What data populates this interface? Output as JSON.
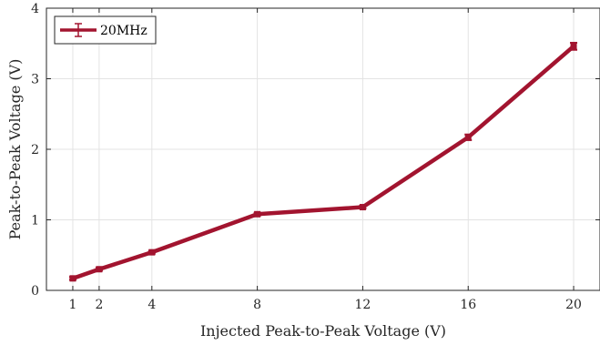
{
  "chart_data": {
    "type": "line",
    "title": "",
    "xlabel": "Injected Peak-to-Peak Voltage (V)",
    "ylabel": "Peak-to-Peak Voltage (V)",
    "xlim": [
      0,
      21
    ],
    "ylim": [
      0,
      4
    ],
    "xticks": [
      1,
      2,
      4,
      8,
      12,
      16,
      20
    ],
    "yticks": [
      0,
      1,
      2,
      3,
      4
    ],
    "grid": true,
    "legend_position": "top-left",
    "series": [
      {
        "name": "20MHz",
        "color": "#A2142F",
        "x": [
          1,
          2,
          4,
          8,
          12,
          16,
          20
        ],
        "y": [
          0.17,
          0.3,
          0.54,
          1.08,
          1.18,
          2.17,
          3.46
        ],
        "error": [
          0.02,
          0.02,
          0.02,
          0.02,
          0.02,
          0.04,
          0.05
        ]
      }
    ]
  }
}
